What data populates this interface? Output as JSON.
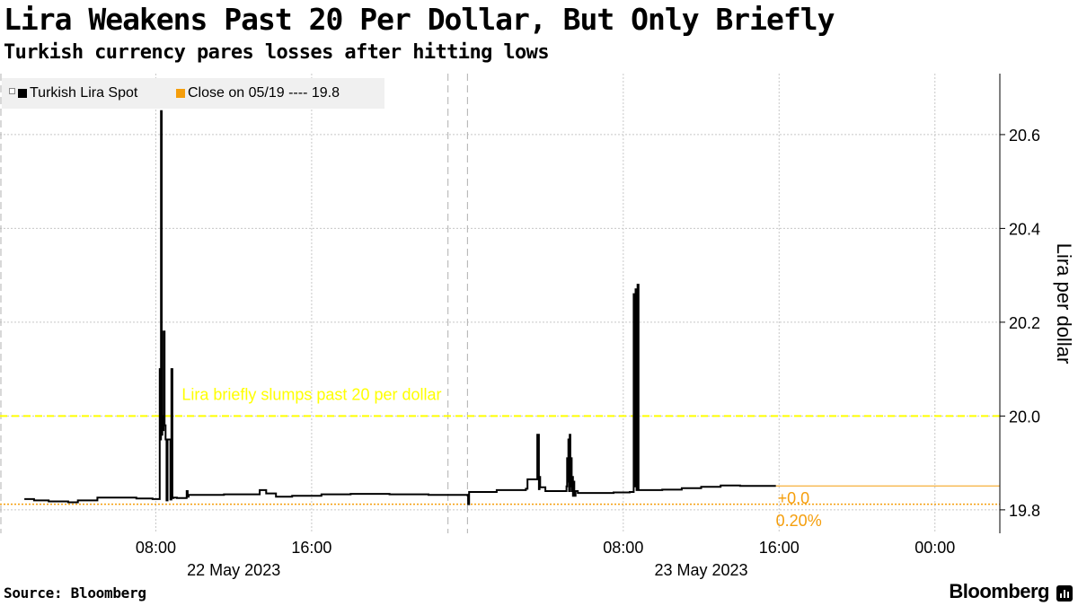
{
  "header": {
    "title": "Lira Weakens Past 20 Per Dollar, But Only Briefly",
    "subtitle": "Turkish currency pares losses after hitting lows"
  },
  "footer": {
    "source": "Source: Bloomberg",
    "brand": "Bloomberg"
  },
  "legend": {
    "series_label": "Turkish Lira Spot",
    "close_label": "Close on 05/19 ---- 19.8"
  },
  "colors": {
    "series": "#000000",
    "close": "#f59e0b",
    "threshold": "#ffff00",
    "grid": "#c8c8c8"
  },
  "chart_data": {
    "type": "line",
    "title": "Lira Weakens Past 20 Per Dollar, But Only Briefly",
    "subtitle": "Turkish currency pares losses after hitting lows",
    "ylabel": "Lira per dollar",
    "xlabel": "",
    "ylim": [
      19.75,
      20.73
    ],
    "y_ticks": [
      19.8,
      20.0,
      20.2,
      20.4,
      20.6
    ],
    "y_tick_labels": [
      "19.8",
      "20.0",
      "20.2",
      "20.4",
      "20.6"
    ],
    "x_domain": [
      "2023-05-22T00:00",
      "2023-05-24T03:20"
    ],
    "x_ticks": [
      {
        "t": "2023-05-22T08:00",
        "label": "08:00"
      },
      {
        "t": "2023-05-22T16:00",
        "label": "16:00"
      },
      {
        "t": "2023-05-23T08:00",
        "label": "08:00"
      },
      {
        "t": "2023-05-23T16:00",
        "label": "16:00"
      },
      {
        "t": "2023-05-24T00:00",
        "label": "00:00"
      }
    ],
    "date_labels": [
      {
        "t": "2023-05-22T12:00",
        "label": "22 May 2023"
      },
      {
        "t": "2023-05-23T12:00",
        "label": "23 May 2023"
      }
    ],
    "day_separators": [
      "2023-05-22T00:00",
      "2023-05-22T23:00",
      "2023-05-23T00:00"
    ],
    "grid": true,
    "legend_position": "top-left",
    "series": [
      {
        "name": "Turkish Lira Spot",
        "x": [
          "2023-05-22T01:15",
          "2023-05-22T01:45",
          "2023-05-22T02:30",
          "2023-05-22T03:30",
          "2023-05-22T04:00",
          "2023-05-22T05:00",
          "2023-05-22T06:00",
          "2023-05-22T07:00",
          "2023-05-22T07:50",
          "2023-05-22T08:10",
          "2023-05-22T08:12",
          "2023-05-22T08:14",
          "2023-05-22T08:16",
          "2023-05-22T08:18",
          "2023-05-22T08:20",
          "2023-05-22T08:22",
          "2023-05-22T08:24",
          "2023-05-22T08:27",
          "2023-05-22T08:30",
          "2023-05-22T08:33",
          "2023-05-22T08:36",
          "2023-05-22T08:45",
          "2023-05-22T08:48",
          "2023-05-22T08:51",
          "2023-05-22T08:54",
          "2023-05-22T09:05",
          "2023-05-22T09:35",
          "2023-05-22T09:38",
          "2023-05-22T09:41",
          "2023-05-22T10:30",
          "2023-05-22T11:30",
          "2023-05-22T12:30",
          "2023-05-22T13:20",
          "2023-05-22T13:40",
          "2023-05-22T14:10",
          "2023-05-22T15:00",
          "2023-05-22T16:30",
          "2023-05-22T18:00",
          "2023-05-22T20:00",
          "2023-05-22T22:00",
          "2023-05-23T00:00",
          "2023-05-23T00:02",
          "2023-05-23T00:05",
          "2023-05-23T01:30",
          "2023-05-23T03:00",
          "2023-05-23T03:05",
          "2023-05-23T03:30",
          "2023-05-23T03:35",
          "2023-05-23T03:40",
          "2023-05-23T03:42",
          "2023-05-23T03:44",
          "2023-05-23T04:00",
          "2023-05-23T05:05",
          "2023-05-23T05:07",
          "2023-05-23T05:09",
          "2023-05-23T05:11",
          "2023-05-23T05:13",
          "2023-05-23T05:15",
          "2023-05-23T05:17",
          "2023-05-23T05:19",
          "2023-05-23T05:21",
          "2023-05-23T05:23",
          "2023-05-23T05:25",
          "2023-05-23T05:27",
          "2023-05-23T05:29",
          "2023-05-23T05:31",
          "2023-05-23T05:33",
          "2023-05-23T05:40",
          "2023-05-23T06:30",
          "2023-05-23T07:30",
          "2023-05-23T08:20",
          "2023-05-23T08:30",
          "2023-05-23T08:32",
          "2023-05-23T08:35",
          "2023-05-23T08:38",
          "2023-05-23T08:41",
          "2023-05-23T08:44",
          "2023-05-23T08:47",
          "2023-05-23T09:00",
          "2023-05-23T10:00",
          "2023-05-23T11:00",
          "2023-05-23T12:00",
          "2023-05-23T13:00",
          "2023-05-23T14:00",
          "2023-05-23T15:00",
          "2023-05-23T15:50"
        ],
        "y": [
          19.823,
          19.82,
          19.818,
          19.816,
          19.82,
          19.826,
          19.826,
          19.824,
          19.823,
          19.823,
          20.1,
          19.95,
          20.65,
          19.96,
          20.0,
          19.97,
          20.18,
          19.98,
          19.95,
          19.82,
          19.95,
          19.822,
          20.1,
          19.825,
          19.826,
          19.825,
          19.84,
          19.828,
          19.832,
          19.832,
          19.833,
          19.833,
          19.842,
          19.835,
          19.828,
          19.83,
          19.833,
          19.834,
          19.833,
          19.832,
          19.831,
          19.812,
          19.838,
          19.842,
          19.845,
          19.865,
          19.865,
          19.96,
          19.844,
          19.87,
          19.848,
          19.84,
          19.85,
          19.91,
          19.86,
          19.95,
          19.84,
          19.96,
          19.85,
          19.91,
          19.84,
          19.87,
          19.83,
          19.86,
          19.84,
          19.83,
          19.84,
          19.836,
          19.836,
          19.837,
          19.838,
          19.838,
          20.26,
          19.85,
          20.27,
          19.842,
          20.28,
          19.842,
          19.842,
          19.843,
          19.846,
          19.849,
          19.852,
          19.851,
          19.851,
          19.851
        ]
      }
    ],
    "close_line": {
      "label": "Close on 05/19",
      "value": 19.812
    },
    "threshold_line": {
      "value": 20.0
    },
    "annotations": [
      {
        "text": "Lira briefly slumps past 20 per dollar",
        "t": "2023-05-22T09:20",
        "y": 20.03,
        "color": "#ffff00"
      }
    ],
    "end_labels": {
      "change": "+0.0",
      "pct": "0.20%"
    }
  }
}
